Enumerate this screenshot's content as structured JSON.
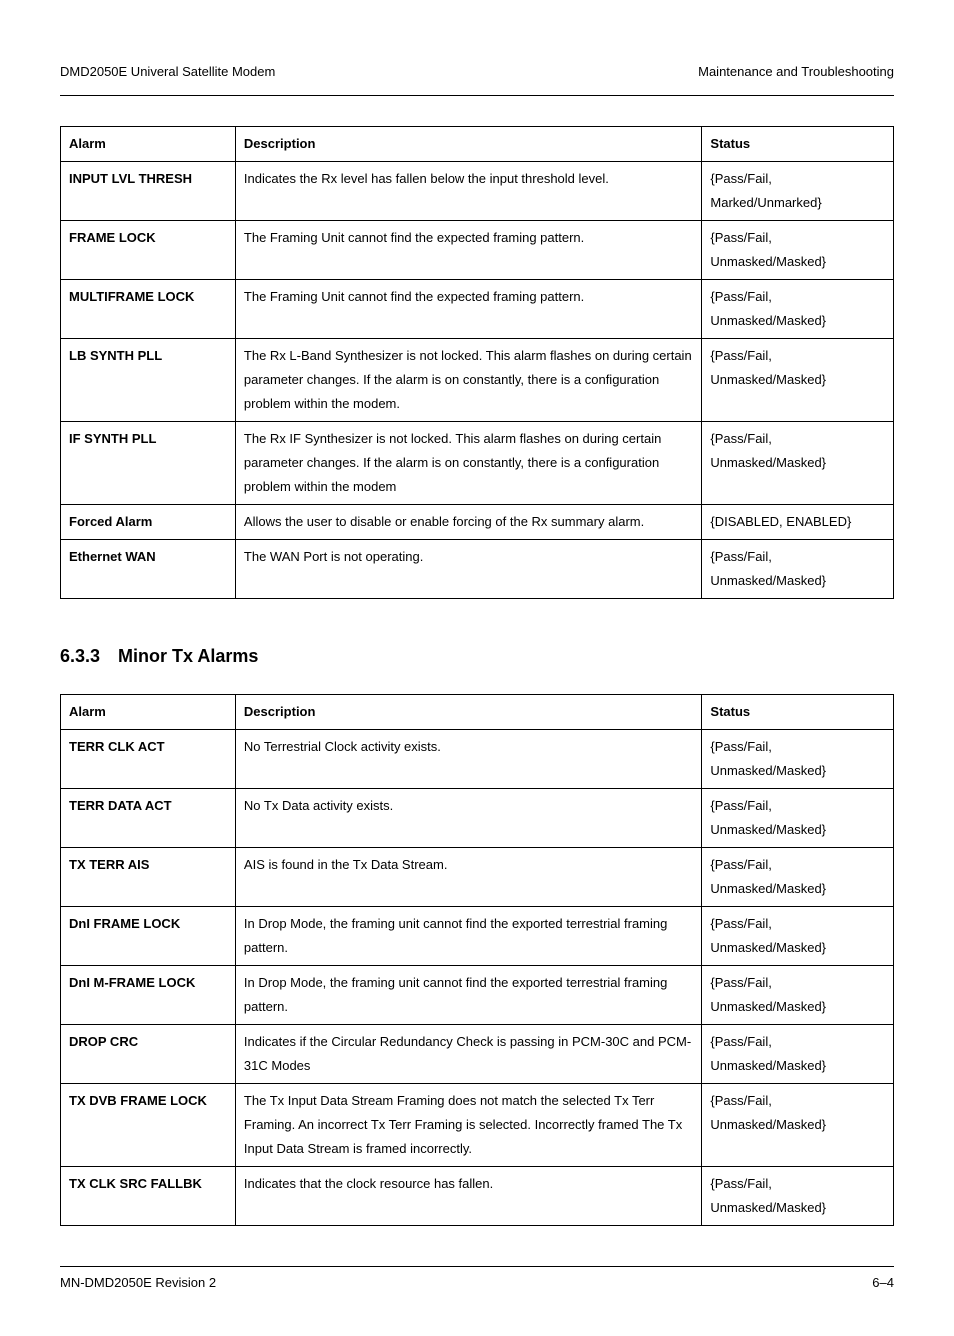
{
  "header": {
    "left": "DMD2050E Univeral Satellite Modem",
    "right": "Maintenance and Troubleshooting"
  },
  "table1": {
    "columns": [
      "Alarm",
      "Description",
      "Status"
    ],
    "rows": [
      {
        "alarm": "INPUT LVL THRESH",
        "desc": "Indicates the Rx level has fallen below the input threshold level.",
        "status": "{Pass/Fail, Marked/Unmarked}"
      },
      {
        "alarm": "FRAME LOCK",
        "desc": "The Framing Unit cannot find the expected framing pattern.",
        "status": "{Pass/Fail, Unmasked/Masked}"
      },
      {
        "alarm": "MULTIFRAME LOCK",
        "desc": "The Framing Unit cannot find the expected framing pattern.",
        "status": "{Pass/Fail, Unmasked/Masked}"
      },
      {
        "alarm": "LB SYNTH PLL",
        "desc": "The Rx L-Band Synthesizer is not locked.  This alarm flashes on during certain parameter changes.  If the alarm is on constantly, there is a configuration problem within the modem.",
        "status": "{Pass/Fail, Unmasked/Masked}"
      },
      {
        "alarm": "IF SYNTH PLL",
        "desc": "The Rx IF Synthesizer is not locked.  This alarm flashes on during certain parameter changes.  If the alarm is on constantly, there is a configuration problem within the modem",
        "status": "{Pass/Fail, Unmasked/Masked}"
      },
      {
        "alarm": "Forced Alarm",
        "desc": "Allows the user to disable or enable forcing of the Rx summary alarm.",
        "status": "{DISABLED, ENABLED}"
      },
      {
        "alarm": "Ethernet WAN",
        "desc": "The WAN Port is not operating.",
        "status": "{Pass/Fail, Unmasked/Masked}"
      }
    ]
  },
  "section": {
    "number": "6.3.3",
    "title": "Minor Tx Alarms"
  },
  "table2": {
    "columns": [
      "Alarm",
      "Description",
      "Status"
    ],
    "rows": [
      {
        "alarm": "TERR CLK ACT",
        "desc": "No Terrestrial Clock activity exists.",
        "status": "{Pass/Fail, Unmasked/Masked}"
      },
      {
        "alarm": "TERR DATA ACT",
        "desc": "No Tx Data activity exists.",
        "status": "{Pass/Fail, Unmasked/Masked}"
      },
      {
        "alarm": "TX TERR AIS",
        "desc": "AIS is found in the Tx Data Stream.",
        "status": "{Pass/Fail, Unmasked/Masked}"
      },
      {
        "alarm": "DnI FRAME LOCK",
        "desc": "In Drop Mode, the framing unit cannot find the exported terrestrial framing pattern.",
        "status": "{Pass/Fail, Unmasked/Masked}"
      },
      {
        "alarm": "DnI M-FRAME LOCK",
        "desc": "In Drop Mode, the framing unit cannot find the exported terrestrial framing pattern.",
        "status": "{Pass/Fail, Unmasked/Masked}"
      },
      {
        "alarm": "DROP CRC",
        "desc": "Indicates if the Circular Redundancy Check is passing in PCM-30C and PCM-31C Modes",
        "status": "{Pass/Fail, Unmasked/Masked}"
      },
      {
        "alarm": "TX DVB FRAME LOCK",
        "desc": "The Tx Input Data Stream Framing does not match the selected Tx Terr Framing. An incorrect Tx Terr Framing is selected.  Incorrectly framed The Tx Input Data Stream is framed incorrectly.",
        "status": "{Pass/Fail, Unmasked/Masked}"
      },
      {
        "alarm": "TX CLK SRC FALLBK",
        "desc": "Indicates that the clock resource has fallen.",
        "status": "{Pass/Fail, Unmasked/Masked}"
      }
    ]
  },
  "footer": {
    "left": "MN-DMD2050E   Revision 2",
    "right": "6–4"
  }
}
